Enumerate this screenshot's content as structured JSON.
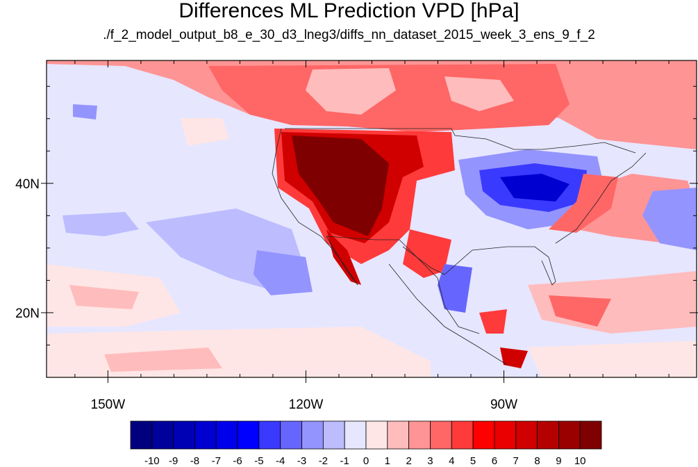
{
  "title": "Differences ML Prediction VPD [hPa]",
  "subtitle": "./f_2_model_output_b8_e_30_d3_lneg3/diffs_nn_dataset_2015_week_3_ens_9_f_2",
  "axes": {
    "lat_ticks": [
      {
        "value": 40,
        "label": "40N"
      },
      {
        "value": 20,
        "label": "20N"
      }
    ],
    "lon_ticks": [
      {
        "value": -150,
        "label": "150W"
      },
      {
        "value": -120,
        "label": "120W"
      },
      {
        "value": -90,
        "label": "90W"
      }
    ],
    "lon_range": [
      -159.3,
      -60.8
    ],
    "lat_range": [
      10,
      59
    ]
  },
  "colorbar": {
    "labels": [
      "-10",
      "-9",
      "-8",
      "-7",
      "-6",
      "-5",
      "-4",
      "-3",
      "-2",
      "-1",
      "0",
      "1",
      "2",
      "3",
      "4",
      "5",
      "6",
      "7",
      "8",
      "9",
      "10"
    ],
    "colors": [
      "#00007f",
      "#00009a",
      "#0000b5",
      "#0000d0",
      "#0000ea",
      "#0000ff",
      "#3a3aff",
      "#6666ff",
      "#9494ff",
      "#bcbcff",
      "#e6e6ff",
      "#ffe6e6",
      "#ffbcbc",
      "#ff9494",
      "#ff6666",
      "#ff3a3a",
      "#ff0000",
      "#ea0000",
      "#d00000",
      "#b50000",
      "#9a0000",
      "#7f0000"
    ]
  }
}
